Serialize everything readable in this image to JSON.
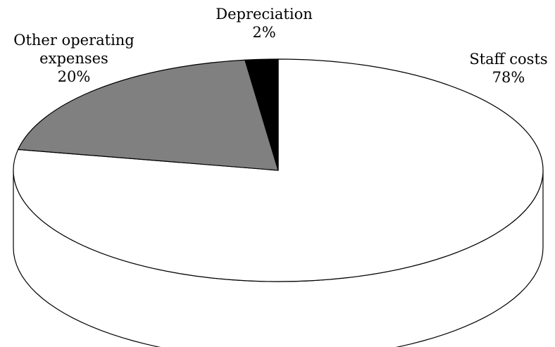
{
  "chart_data": {
    "type": "pie",
    "title": "",
    "slices": [
      {
        "name": "Staff costs",
        "value": 78,
        "label_lines": [
          "Staff costs",
          "78%"
        ],
        "color": "#ffffff"
      },
      {
        "name": "Other operating expenses",
        "value": 20,
        "label_lines": [
          "Other operating",
          "expenses",
          "20%"
        ],
        "color": "#808080"
      },
      {
        "name": "Depreciation",
        "value": 2,
        "label_lines": [
          "Depreciation",
          "2%"
        ],
        "color": "#000000"
      }
    ],
    "three_d": true,
    "outline_color": "#000000"
  }
}
